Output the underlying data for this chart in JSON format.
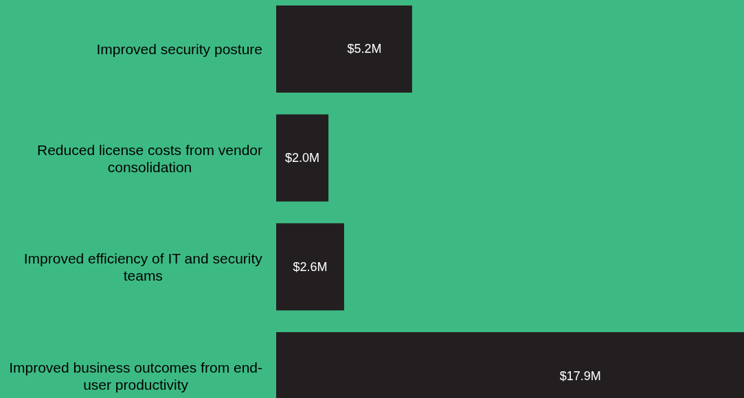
{
  "chart_data": {
    "type": "bar",
    "orientation": "horizontal",
    "categories": [
      "Improved security posture",
      "Reduced license costs from vendor consolidation",
      "Improved efficiency of IT and security teams",
      "Improved business outcomes from end-user productivity"
    ],
    "values": [
      5.2,
      2.0,
      2.6,
      17.9
    ],
    "value_labels": [
      "$5.2M",
      "$2.0M",
      "$2.6M",
      "$17.9M"
    ],
    "color": "#231f20"
  }
}
